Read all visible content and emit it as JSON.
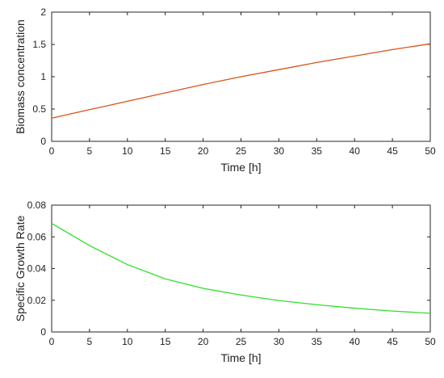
{
  "chart_data": [
    {
      "type": "line",
      "title": "",
      "xlabel": "Time [h]",
      "ylabel": "Biomass concentration",
      "xlim": [
        0,
        50
      ],
      "ylim": [
        0,
        2
      ],
      "xticks": [
        "0",
        "5",
        "10",
        "15",
        "20",
        "25",
        "30",
        "35",
        "40",
        "45",
        "50"
      ],
      "yticks": [
        "0",
        "0.5",
        "1",
        "1.5",
        "2"
      ],
      "grid": false,
      "series": [
        {
          "color": "#d95319",
          "x": [
            0,
            5,
            10,
            15,
            20,
            25,
            30,
            35,
            40,
            45,
            50
          ],
          "y": [
            0.36,
            0.49,
            0.62,
            0.75,
            0.88,
            1.0,
            1.11,
            1.22,
            1.32,
            1.42,
            1.51
          ]
        }
      ]
    },
    {
      "type": "line",
      "title": "",
      "xlabel": "Time [h]",
      "ylabel": "Specific Growth Rate",
      "xlim": [
        0,
        50
      ],
      "ylim": [
        0,
        0.08
      ],
      "xticks": [
        "0",
        "5",
        "10",
        "15",
        "20",
        "25",
        "30",
        "35",
        "40",
        "45",
        "50"
      ],
      "yticks": [
        "0",
        "0.02",
        "0.04",
        "0.06",
        "0.08"
      ],
      "grid": false,
      "series": [
        {
          "color": "#2de02d",
          "x": [
            0,
            5,
            10,
            15,
            20,
            25,
            30,
            35,
            40,
            45,
            50
          ],
          "y": [
            0.0685,
            0.0545,
            0.0425,
            0.0335,
            0.0275,
            0.0233,
            0.0198,
            0.0172,
            0.015,
            0.0132,
            0.0118
          ]
        }
      ]
    }
  ]
}
